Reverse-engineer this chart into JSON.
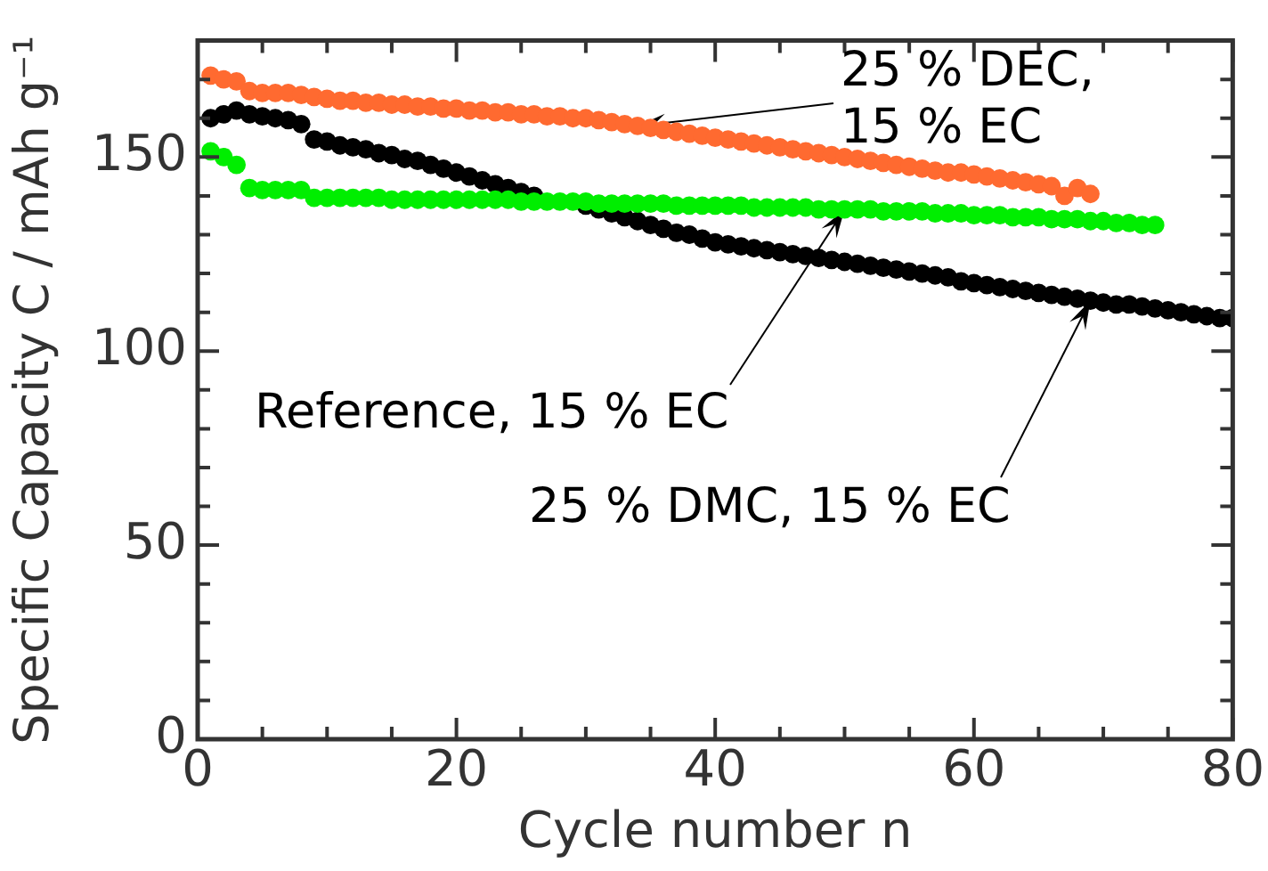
{
  "chart_data": {
    "type": "scatter",
    "xlabel": "Cycle number n",
    "ylabel": "Specific Capacity C / mAh g⁻¹",
    "xlim": [
      0,
      80
    ],
    "xticks": [
      0,
      {
        "value": 5,
        "label": null
      },
      {
        "value": 10,
        "label": null
      },
      {
        "value": 15,
        "label": null
      },
      20,
      {
        "value": 25,
        "label": null
      },
      {
        "value": 30,
        "label": null
      },
      {
        "value": 35,
        "label": null
      },
      40,
      {
        "value": 45,
        "label": null
      },
      {
        "value": 50,
        "label": null
      },
      {
        "value": 55,
        "label": null
      },
      60,
      {
        "value": 65,
        "label": null
      },
      {
        "value": 70,
        "label": null
      },
      {
        "value": 75,
        "label": null
      },
      80
    ],
    "ylim": [
      0,
      180
    ],
    "yticks": [
      0,
      {
        "value": 10,
        "label": null
      },
      {
        "value": 20,
        "label": null
      },
      {
        "value": 30,
        "label": null
      },
      {
        "value": 40,
        "label": null
      },
      50,
      {
        "value": 60,
        "label": null
      },
      {
        "value": 70,
        "label": null
      },
      {
        "value": 80,
        "label": null
      },
      {
        "value": 90,
        "label": null
      },
      100,
      {
        "value": 110,
        "label": null
      },
      {
        "value": 120,
        "label": null
      },
      {
        "value": 130,
        "label": null
      },
      {
        "value": 140,
        "label": null
      },
      150,
      {
        "value": 160,
        "label": null
      },
      {
        "value": 170,
        "label": null
      },
      {
        "value": 180,
        "label": null
      }
    ],
    "grid": false,
    "legend": false,
    "marker": "circle",
    "x": [
      1,
      2,
      3,
      4,
      5,
      6,
      7,
      8,
      9,
      10,
      11,
      12,
      13,
      14,
      15,
      16,
      17,
      18,
      19,
      20,
      21,
      22,
      23,
      24,
      25,
      26,
      27,
      28,
      29,
      30,
      31,
      32,
      33,
      34,
      35,
      36,
      37,
      38,
      39,
      40,
      41,
      42,
      43,
      44,
      45,
      46,
      47,
      48,
      49,
      50,
      51,
      52,
      53,
      54,
      55,
      56,
      57,
      58,
      59,
      60,
      61,
      62,
      63,
      64,
      65,
      66,
      67,
      68,
      69,
      70,
      71,
      72,
      73,
      74,
      75,
      76,
      77,
      78,
      79,
      80
    ],
    "series": [
      {
        "color": "#ff6a30",
        "values": [
          171,
          170,
          169.5,
          167,
          166.5,
          166.5,
          166.5,
          166,
          165.5,
          165,
          164.5,
          164.5,
          164,
          164,
          163.5,
          163.5,
          163,
          163,
          162.5,
          162.5,
          162,
          162,
          161.5,
          161.5,
          161,
          161,
          160.5,
          160.5,
          160,
          160,
          159.5,
          159,
          158.5,
          158,
          157.5,
          157,
          156.5,
          156,
          155.5,
          155,
          154.5,
          154,
          153.5,
          153,
          152.5,
          152,
          151.5,
          151,
          150.5,
          150,
          149.5,
          149,
          148.5,
          148,
          147.5,
          147,
          146.5,
          146,
          146,
          145.5,
          145,
          144.5,
          144,
          143.5,
          143,
          142.5,
          140,
          142,
          140.5,
          null,
          null,
          null,
          null,
          null,
          null,
          null,
          null,
          null,
          null,
          null
        ]
      },
      {
        "color": "#00ee00",
        "values": [
          151.5,
          150,
          148,
          142,
          141.5,
          141.5,
          141.5,
          141.5,
          139.5,
          139.5,
          139.5,
          139.5,
          139.5,
          139.5,
          139,
          139,
          139,
          139,
          139,
          139,
          139,
          139,
          139,
          139,
          138.5,
          138.5,
          138.5,
          138.5,
          138.5,
          138.5,
          138,
          138,
          138,
          138,
          138,
          138,
          137.5,
          137.5,
          137.5,
          137.5,
          137.5,
          137.5,
          137,
          137,
          137,
          137,
          137,
          136.5,
          136.5,
          136.5,
          136.5,
          136.5,
          136,
          136,
          136,
          136,
          135.5,
          135.5,
          135.5,
          135,
          135,
          135,
          134.5,
          134.5,
          134.5,
          134,
          134,
          134,
          133.5,
          133.5,
          133,
          133,
          132.5,
          132.5,
          null,
          null,
          null,
          null,
          null,
          null
        ]
      },
      {
        "color": "#000000",
        "values": [
          160,
          161,
          162,
          161,
          160.5,
          160,
          159.5,
          158.5,
          154.5,
          154,
          153,
          152.5,
          152,
          151,
          150.5,
          149.5,
          149,
          148,
          147,
          146,
          145,
          144,
          143,
          142,
          141,
          140,
          null,
          null,
          null,
          137.5,
          136.5,
          135.5,
          134.5,
          133.5,
          132.5,
          131.5,
          130.5,
          130,
          129,
          128,
          127.5,
          127,
          126.5,
          126,
          125.5,
          125,
          124.5,
          124,
          123.5,
          123,
          122.5,
          122,
          121.5,
          121,
          120.5,
          120,
          119.5,
          119,
          118,
          117.5,
          117,
          116.5,
          116,
          115.5,
          115,
          114.5,
          114,
          113.5,
          113,
          112.5,
          112,
          112,
          111.5,
          111,
          110.5,
          110,
          109.5,
          109,
          108.5,
          108.5
        ]
      }
    ],
    "annotations": [
      {
        "text": "25 % DEC,\n15 % EC",
        "x": 34,
        "y": 158
      },
      {
        "text": "Reference, 15 % EC",
        "x": 50,
        "y": 136.5
      },
      {
        "text": "25 % DMC, 15 % EC",
        "x": 69,
        "y": 113
      }
    ]
  }
}
